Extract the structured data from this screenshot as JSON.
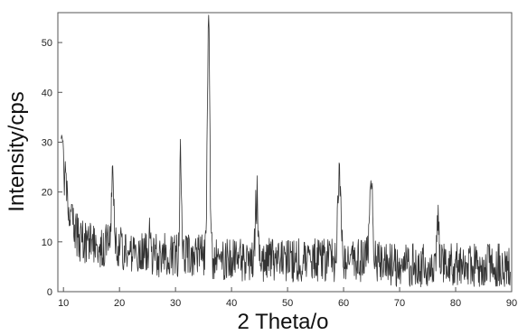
{
  "chart_data": {
    "type": "line",
    "title": "",
    "xlabel": "2 Theta/o",
    "ylabel": "Intensity/cps",
    "xlim": [
      9,
      90
    ],
    "ylim": [
      0,
      56
    ],
    "xticks": [
      10,
      20,
      30,
      40,
      50,
      60,
      70,
      80,
      90
    ],
    "yticks": [
      0,
      10,
      20,
      30,
      40,
      50
    ],
    "grid": false,
    "line_color": "#333333",
    "background_level": [
      [
        9.5,
        29
      ],
      [
        10.5,
        19
      ],
      [
        11.5,
        12
      ],
      [
        13,
        9
      ],
      [
        15,
        8
      ],
      [
        18,
        8
      ],
      [
        22,
        7
      ],
      [
        26,
        6
      ],
      [
        30,
        6
      ],
      [
        34,
        6
      ],
      [
        40,
        5
      ],
      [
        45,
        5
      ],
      [
        50,
        5
      ],
      [
        55,
        5
      ],
      [
        60,
        5
      ],
      [
        65,
        5
      ],
      [
        70,
        4
      ],
      [
        75,
        4
      ],
      [
        80,
        4
      ],
      [
        85,
        4
      ],
      [
        90,
        4
      ]
    ],
    "noise_amplitude": 4,
    "peaks": [
      {
        "x": 18.8,
        "y": 21,
        "width": 0.35
      },
      {
        "x": 25.4,
        "y": 14,
        "width": 0.2
      },
      {
        "x": 30.9,
        "y": 27,
        "width": 0.2
      },
      {
        "x": 35.9,
        "y": 54,
        "width": 0.3
      },
      {
        "x": 44.5,
        "y": 18,
        "width": 0.3
      },
      {
        "x": 59.2,
        "y": 25,
        "width": 0.35
      },
      {
        "x": 64.9,
        "y": 22,
        "width": 0.4
      },
      {
        "x": 76.8,
        "y": 14,
        "width": 0.25
      }
    ]
  }
}
